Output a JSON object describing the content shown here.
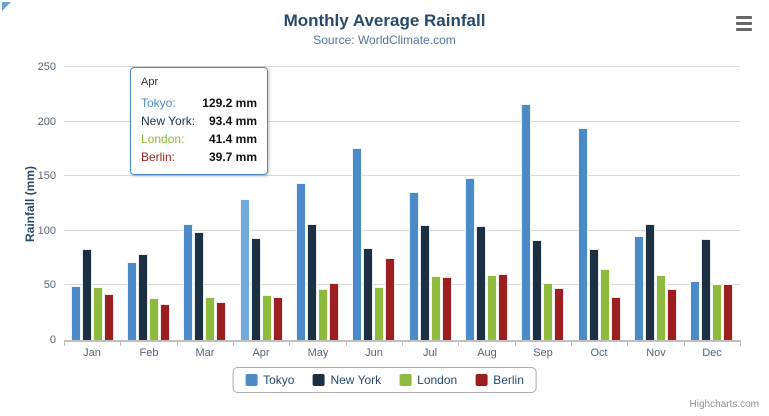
{
  "chart_data": {
    "type": "bar",
    "title": "Monthly Average Rainfall",
    "subtitle": "Source: WorldClimate.com",
    "categories": [
      "Jan",
      "Feb",
      "Mar",
      "Apr",
      "May",
      "Jun",
      "Jul",
      "Aug",
      "Sep",
      "Oct",
      "Nov",
      "Dec"
    ],
    "series": [
      {
        "name": "Tokyo",
        "color": "#4B8BC8",
        "hover_color": "#73A9D8",
        "values": [
          49.9,
          71.5,
          106.4,
          129.2,
          144.0,
          176.0,
          135.6,
          148.5,
          216.4,
          194.1,
          95.6,
          54.4
        ]
      },
      {
        "name": "New York",
        "color": "#1B3043",
        "values": [
          83.6,
          78.8,
          98.5,
          93.4,
          106.0,
          84.5,
          105.0,
          104.3,
          91.2,
          83.5,
          106.6,
          92.3
        ]
      },
      {
        "name": "London",
        "color": "#8EBB3D",
        "values": [
          48.9,
          38.8,
          39.3,
          41.4,
          47.0,
          48.3,
          59.0,
          59.6,
          52.4,
          65.2,
          59.3,
          51.2
        ]
      },
      {
        "name": "Berlin",
        "color": "#9C1E1E",
        "values": [
          42.4,
          33.2,
          34.5,
          39.7,
          52.6,
          75.5,
          57.4,
          60.4,
          47.6,
          39.1,
          46.8,
          51.1
        ]
      }
    ],
    "xlabel": "",
    "ylabel": "Rainfall (mm)",
    "ylim": [
      0,
      250
    ],
    "y_ticks": [
      0,
      50,
      100,
      150,
      200,
      250
    ],
    "grid": true,
    "legend_position": "bottom",
    "value_suffix": " mm",
    "hovered_category": "Apr",
    "hovered_series": "Tokyo"
  },
  "tooltip": {
    "category": "Apr",
    "rows": [
      {
        "name": "Tokyo",
        "value_text": "129.2 mm"
      },
      {
        "name": "New York",
        "value_text": "93.4 mm"
      },
      {
        "name": "London",
        "value_text": "41.4 mm"
      },
      {
        "name": "Berlin",
        "value_text": "39.7 mm"
      }
    ]
  },
  "legend": {
    "items": [
      "Tokyo",
      "New York",
      "London",
      "Berlin"
    ]
  },
  "credits": {
    "label": "Highcharts.com"
  }
}
